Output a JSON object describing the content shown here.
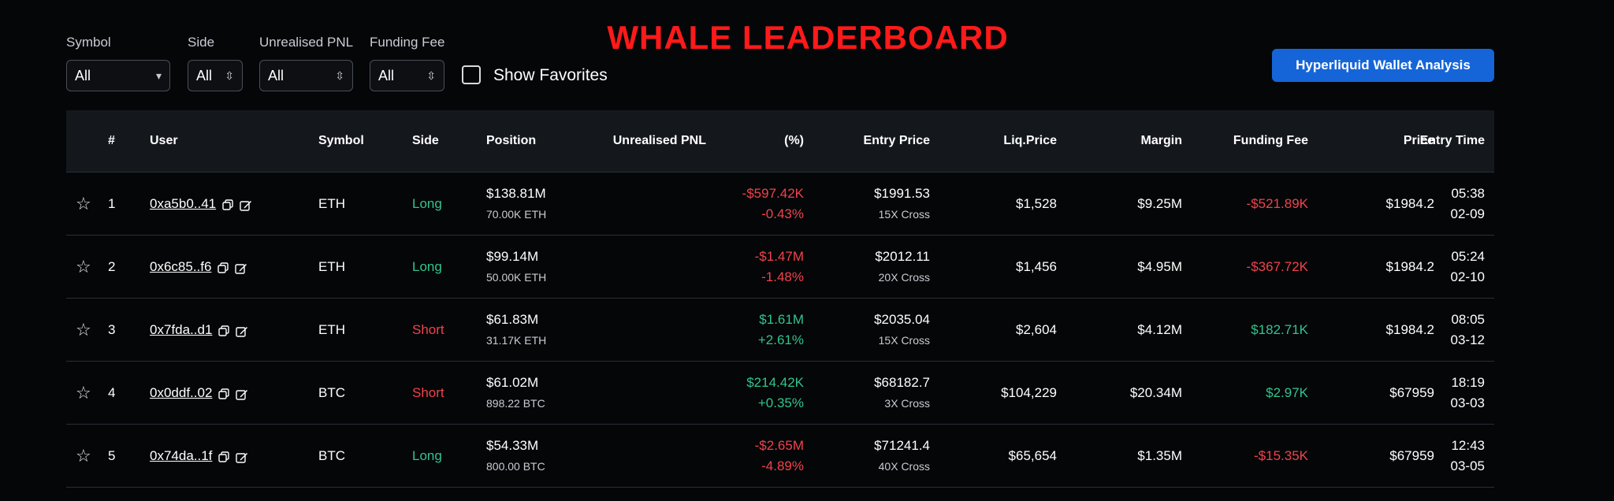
{
  "title": "WHALE LEADERBOARD",
  "filters": [
    {
      "label": "Symbol",
      "value": "All"
    },
    {
      "label": "Side",
      "value": "All"
    },
    {
      "label": "Unrealised PNL",
      "value": "All"
    },
    {
      "label": "Funding Fee",
      "value": "All"
    }
  ],
  "show_favorites_label": "Show Favorites",
  "analysis_button": "Hyperliquid Wallet Analysis",
  "columns": {
    "rank": "#",
    "user": "User",
    "symbol": "Symbol",
    "side": "Side",
    "position": "Position",
    "pnl": "Unrealised PNL",
    "pnl_pct": "(%)",
    "entry_price": "Entry Price",
    "liq_price": "Liq.Price",
    "margin": "Margin",
    "funding_fee": "Funding Fee",
    "price": "Price",
    "entry_time": "Entry Time"
  },
  "rows": [
    {
      "rank": "1",
      "user": "0xa5b0..41",
      "symbol": "ETH",
      "side": "Long",
      "position": "$138.81M",
      "position_size": "70.00K ETH",
      "pnl": "-$597.42K",
      "pnl_pct": "-0.43%",
      "entry_price": "$1991.53",
      "leverage": "15X Cross",
      "liq_price": "$1,528",
      "margin": "$9.25M",
      "funding_fee": "-$521.89K",
      "price": "$1984.2",
      "time": "05:38",
      "date": "02-09"
    },
    {
      "rank": "2",
      "user": "0x6c85..f6",
      "symbol": "ETH",
      "side": "Long",
      "position": "$99.14M",
      "position_size": "50.00K ETH",
      "pnl": "-$1.47M",
      "pnl_pct": "-1.48%",
      "entry_price": "$2012.11",
      "leverage": "20X Cross",
      "liq_price": "$1,456",
      "margin": "$4.95M",
      "funding_fee": "-$367.72K",
      "price": "$1984.2",
      "time": "05:24",
      "date": "02-10"
    },
    {
      "rank": "3",
      "user": "0x7fda..d1",
      "symbol": "ETH",
      "side": "Short",
      "position": "$61.83M",
      "position_size": "31.17K ETH",
      "pnl": "$1.61M",
      "pnl_pct": "+2.61%",
      "entry_price": "$2035.04",
      "leverage": "15X Cross",
      "liq_price": "$2,604",
      "margin": "$4.12M",
      "funding_fee": "$182.71K",
      "price": "$1984.2",
      "time": "08:05",
      "date": "03-12"
    },
    {
      "rank": "4",
      "user": "0x0ddf..02",
      "symbol": "BTC",
      "side": "Short",
      "position": "$61.02M",
      "position_size": "898.22 BTC",
      "pnl": "$214.42K",
      "pnl_pct": "+0.35%",
      "entry_price": "$68182.7",
      "leverage": "3X Cross",
      "liq_price": "$104,229",
      "margin": "$20.34M",
      "funding_fee": "$2.97K",
      "price": "$67959",
      "time": "18:19",
      "date": "03-03"
    },
    {
      "rank": "5",
      "user": "0x74da..1f",
      "symbol": "BTC",
      "side": "Long",
      "position": "$54.33M",
      "position_size": "800.00 BTC",
      "pnl": "-$2.65M",
      "pnl_pct": "-4.89%",
      "entry_price": "$71241.4",
      "leverage": "40X Cross",
      "liq_price": "$65,654",
      "margin": "$1.35M",
      "funding_fee": "-$15.35K",
      "price": "$67959",
      "time": "12:43",
      "date": "03-05"
    }
  ]
}
